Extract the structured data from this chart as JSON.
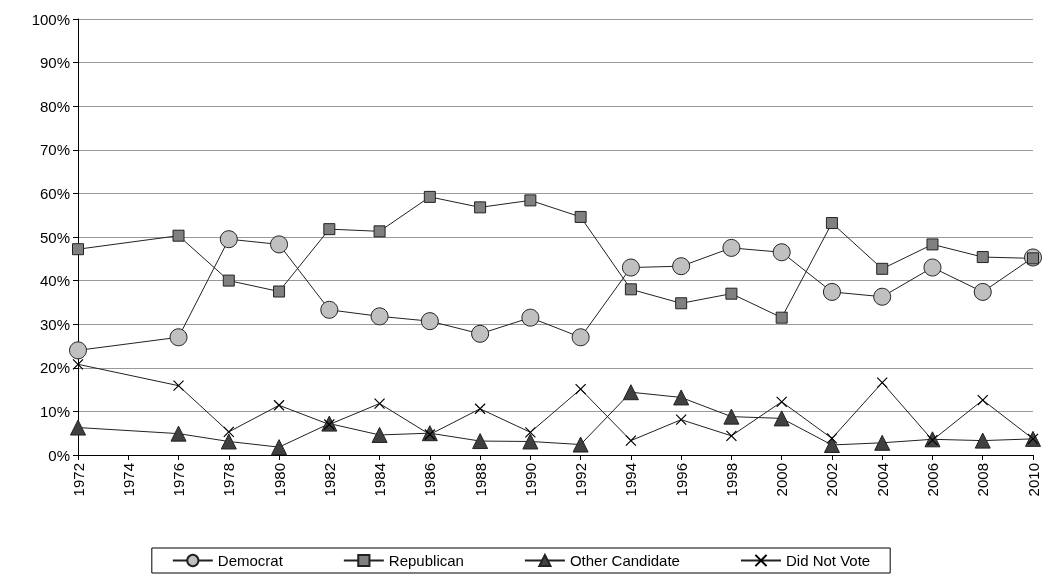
{
  "chart_data": {
    "type": "line",
    "x": [
      1972,
      1976,
      1978,
      1980,
      1982,
      1984,
      1986,
      1988,
      1990,
      1992,
      1994,
      1996,
      1998,
      2000,
      2002,
      2004,
      2006,
      2008,
      2010
    ],
    "series": [
      {
        "name": "Democrat",
        "color": "#c0c0c0",
        "marker": "circle",
        "values": [
          24,
          27,
          49.5,
          48.3,
          33.3,
          31.8,
          30.7,
          27.8,
          31.5,
          27,
          43,
          43.3,
          47.5,
          46.5,
          37.4,
          36.3,
          43,
          37.4,
          45.3
        ]
      },
      {
        "name": "Republican",
        "color": "#808080",
        "marker": "square",
        "values": [
          47.2,
          50.3,
          40,
          37.5,
          51.8,
          51.3,
          59.2,
          56.8,
          58.4,
          54.6,
          38,
          34.8,
          37,
          31.5,
          53.2,
          42.7,
          48.3,
          45.4,
          45.1
        ]
      },
      {
        "name": "Other Candidate",
        "color": "#404040",
        "marker": "triangle",
        "values": [
          6.3,
          4.9,
          3.1,
          1.8,
          7.2,
          4.6,
          5,
          3.2,
          3.1,
          2.4,
          14.4,
          13.2,
          8.8,
          8.4,
          2.3,
          2.8,
          3.6,
          3.3,
          3.7
        ]
      },
      {
        "name": "Did Not Vote",
        "color": "#000000",
        "marker": "cross",
        "values": [
          20.8,
          15.9,
          5.3,
          11.4,
          7,
          11.8,
          4.7,
          10.6,
          5.2,
          15.1,
          3.3,
          8.1,
          4.4,
          12.2,
          3.8,
          16.6,
          3.4,
          12.6,
          3.7
        ]
      }
    ],
    "xlim": [
      1972,
      2010
    ],
    "xticks": [
      1972,
      1974,
      1976,
      1978,
      1980,
      1982,
      1984,
      1986,
      1988,
      1990,
      1992,
      1994,
      1996,
      1998,
      2000,
      2002,
      2004,
      2006,
      2008,
      2010
    ],
    "ylim": [
      0,
      100
    ],
    "yticks": [
      {
        "value": 0,
        "label": "0%"
      },
      {
        "value": 10,
        "label": "10%"
      },
      {
        "value": 20,
        "label": "20%"
      },
      {
        "value": 30,
        "label": "30%"
      },
      {
        "value": 40,
        "label": "40%"
      },
      {
        "value": 50,
        "label": "50%"
      },
      {
        "value": 60,
        "label": "60%"
      },
      {
        "value": 70,
        "label": "70%"
      },
      {
        "value": 80,
        "label": "80%"
      },
      {
        "value": 90,
        "label": "90%"
      },
      {
        "value": 100,
        "label": "100%"
      }
    ],
    "grid": "y",
    "legend": "bottom",
    "line_style": "solid"
  }
}
